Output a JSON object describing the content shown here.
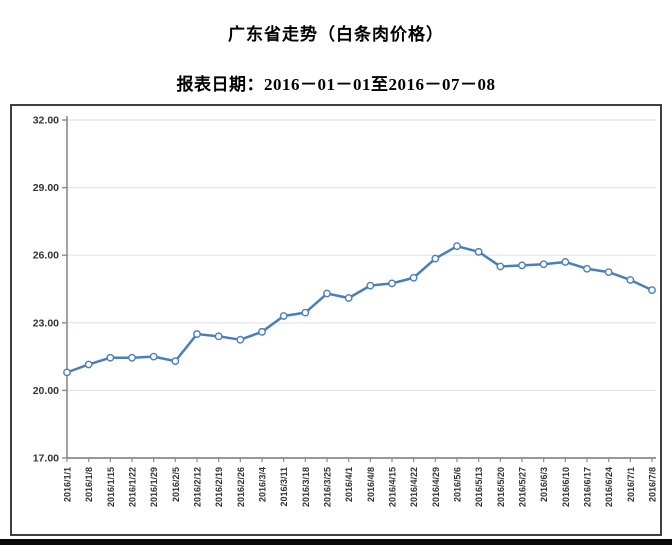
{
  "chart_data": {
    "type": "line",
    "title": "广东省走势（白条肉价格）",
    "subtitle": "报表日期：2016－01－01至2016－07－08",
    "categories": [
      "2016/1/1",
      "2016/1/8",
      "2016/1/15",
      "2016/1/22",
      "2016/1/29",
      "2016/2/5",
      "2016/2/12",
      "2016/2/19",
      "2016/2/26",
      "2016/3/4",
      "2016/3/11",
      "2016/3/18",
      "2016/3/25",
      "2016/4/1",
      "2016/4/8",
      "2016/4/15",
      "2016/4/22",
      "2016/4/29",
      "2016/5/6",
      "2016/5/13",
      "2016/5/20",
      "2016/5/27",
      "2016/6/3",
      "2016/6/10",
      "2016/6/17",
      "2016/6/24",
      "2016/7/1",
      "2016/7/8"
    ],
    "series": [
      {
        "name": "白条肉价格",
        "values": [
          20.8,
          21.15,
          21.45,
          21.45,
          21.5,
          21.3,
          22.5,
          22.4,
          22.25,
          22.6,
          23.3,
          23.45,
          24.3,
          24.1,
          24.65,
          24.75,
          25.0,
          25.85,
          26.4,
          26.15,
          25.5,
          25.55,
          25.6,
          25.7,
          25.4,
          25.25,
          24.9,
          24.45
        ]
      }
    ],
    "xlabel": "",
    "ylabel": "",
    "ylim": [
      17,
      32
    ],
    "yticks": [
      17,
      20,
      23,
      26,
      29,
      32
    ],
    "ytick_format_decimals": 2,
    "grid": true,
    "legend_position": "none",
    "marker": "hollow-circle",
    "colors": {
      "line": "#4a7ebb",
      "marker_fill": "#ffffff",
      "grid": "#dfe6ef",
      "axis": "#8a8a8a",
      "tick_label": "#333333",
      "frame_border": "#3f3f3f",
      "bottom_divider": "#0a0a0a"
    }
  }
}
